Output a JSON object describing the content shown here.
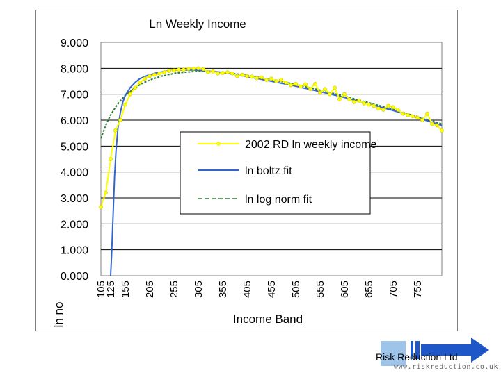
{
  "chart_data": {
    "type": "line",
    "title": "Ln Weekly Income",
    "xlabel": "Income Band",
    "ylabel": "ln no",
    "ylim": [
      0,
      9
    ],
    "y_ticks": [
      "0.000",
      "1.000",
      "2.000",
      "3.000",
      "4.000",
      "5.000",
      "6.000",
      "7.000",
      "8.000",
      "9.000"
    ],
    "x_ticks": [
      "105",
      "125",
      "155",
      "205",
      "255",
      "305",
      "355",
      "405",
      "455",
      "505",
      "555",
      "605",
      "655",
      "705",
      "755"
    ],
    "xlim": [
      105,
      805
    ],
    "legend": {
      "placement": "center-right",
      "entries": [
        "2002 RD ln weekly income",
        "ln boltz fit",
        "ln log norm fit"
      ]
    },
    "series": [
      {
        "name": "2002 RD ln weekly income",
        "color": "#ffff00",
        "style": "line-markers",
        "x": [
          105,
          115,
          125,
          135,
          145,
          155,
          165,
          175,
          185,
          195,
          205,
          215,
          225,
          235,
          245,
          255,
          265,
          275,
          285,
          295,
          305,
          315,
          325,
          335,
          345,
          355,
          365,
          375,
          385,
          395,
          405,
          415,
          425,
          435,
          445,
          455,
          465,
          475,
          485,
          495,
          505,
          515,
          525,
          535,
          545,
          555,
          565,
          575,
          585,
          595,
          605,
          615,
          625,
          635,
          645,
          655,
          665,
          675,
          685,
          695,
          705,
          715,
          725,
          735,
          745,
          755,
          765,
          775,
          785,
          795,
          805
        ],
        "y": [
          2.65,
          3.2,
          4.5,
          5.6,
          6.0,
          6.6,
          7.0,
          7.25,
          7.45,
          7.6,
          7.7,
          7.75,
          7.8,
          7.85,
          7.9,
          7.92,
          7.95,
          7.95,
          7.98,
          7.99,
          8.0,
          7.97,
          7.85,
          7.88,
          7.8,
          7.82,
          7.85,
          7.8,
          7.7,
          7.75,
          7.7,
          7.68,
          7.62,
          7.65,
          7.55,
          7.6,
          7.5,
          7.55,
          7.45,
          7.35,
          7.4,
          7.3,
          7.38,
          7.2,
          7.4,
          7.05,
          7.2,
          7.0,
          7.25,
          6.8,
          7.0,
          6.8,
          6.7,
          6.75,
          6.65,
          6.6,
          6.55,
          6.45,
          6.4,
          6.55,
          6.5,
          6.4,
          6.25,
          6.2,
          6.15,
          6.1,
          6.0,
          6.25,
          5.85,
          5.8,
          5.6
        ]
      },
      {
        "name": "ln boltz fit",
        "color": "#3366cc",
        "style": "line",
        "x": [
          125,
          127,
          130,
          133,
          136,
          140,
          145,
          150,
          155,
          165,
          175,
          185,
          200,
          220,
          250,
          280,
          300,
          320,
          350,
          400,
          450,
          500,
          550,
          600,
          650,
          700,
          750,
          805
        ],
        "y": [
          0.0,
          0.8,
          2.3,
          3.8,
          4.8,
          5.7,
          6.3,
          6.7,
          6.95,
          7.25,
          7.45,
          7.6,
          7.72,
          7.83,
          7.92,
          7.94,
          7.93,
          7.9,
          7.85,
          7.7,
          7.52,
          7.33,
          7.12,
          6.9,
          6.65,
          6.4,
          6.12,
          5.8
        ]
      },
      {
        "name": "ln log norm fit",
        "color": "#2e7d32",
        "style": "dashed",
        "x": [
          105,
          115,
          125,
          135,
          145,
          155,
          165,
          175,
          190,
          210,
          230,
          260,
          300,
          330,
          360,
          400,
          450,
          500,
          550,
          600,
          650,
          700,
          750,
          805
        ],
        "y": [
          5.3,
          5.8,
          6.2,
          6.5,
          6.75,
          6.95,
          7.1,
          7.25,
          7.42,
          7.58,
          7.7,
          7.82,
          7.88,
          7.87,
          7.84,
          7.74,
          7.58,
          7.4,
          7.18,
          6.95,
          6.7,
          6.44,
          6.16,
          5.85
        ]
      }
    ]
  },
  "footer": {
    "company": "Risk Reduction Ltd",
    "url": "www.riskreduction.co.uk"
  }
}
